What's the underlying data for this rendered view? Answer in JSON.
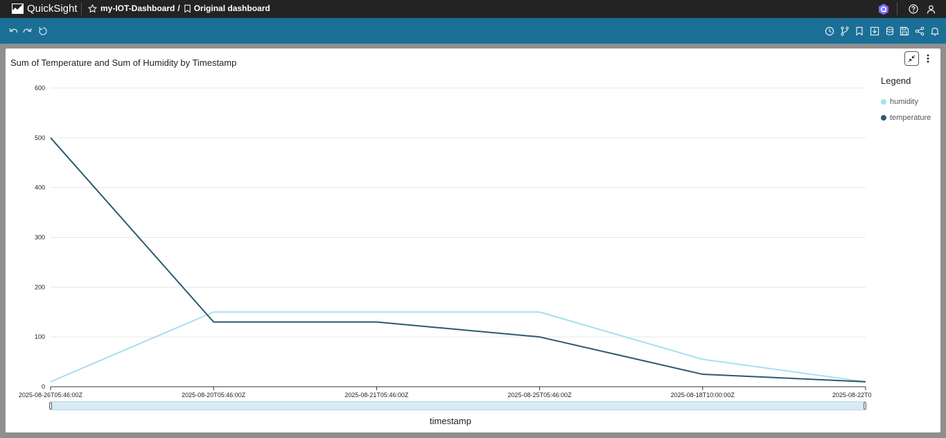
{
  "topbar": {
    "brand": "QuickSight",
    "dashboard_name": "my-IOT-Dashboard",
    "separator": "/",
    "sheet_name": "Original dashboard",
    "icons": [
      "star-icon",
      "bookmark-icon",
      "q-assistant-icon",
      "help-icon",
      "user-icon"
    ]
  },
  "toolbar": {
    "left_icons": [
      "undo-icon",
      "redo-icon",
      "reset-icon"
    ],
    "right_icons": [
      "schedule-icon",
      "branch-icon",
      "bookmark-icon",
      "download-icon",
      "dataset-icon",
      "save-icon",
      "share-icon",
      "alert-icon"
    ]
  },
  "visual": {
    "title": "Sum of Temperature and Sum of Humidity by Timestamp",
    "legend_title": "Legend",
    "x_axis_title": "timestamp"
  },
  "colors": {
    "topbar_bg": "#232323",
    "toolbar_bg": "#1b6f97",
    "humidity": "#a6dff0",
    "temperature": "#2b5a6e"
  },
  "chart_data": {
    "type": "line",
    "title": "Sum of Temperature and Sum of Humidity by Timestamp",
    "xlabel": "timestamp",
    "ylabel": "",
    "categories": [
      "2025-08-26T05:46:00Z",
      "2025-08-20T05:46:00Z",
      "2025-08-21T05:46:00Z",
      "2025-08-25T05:46:00Z",
      "2025-08-18T10:00:00Z",
      "2025-08-22T0"
    ],
    "series": [
      {
        "name": "humidity",
        "color": "#a6dff0",
        "values": [
          10,
          150,
          150,
          150,
          55,
          10
        ]
      },
      {
        "name": "temperature",
        "color": "#2b5a6e",
        "values": [
          500,
          130,
          130,
          100,
          25,
          10
        ]
      }
    ],
    "ylim": [
      0,
      600
    ],
    "yticks": [
      0,
      100,
      200,
      300,
      400,
      500,
      600
    ],
    "grid": true,
    "legend_position": "right"
  }
}
